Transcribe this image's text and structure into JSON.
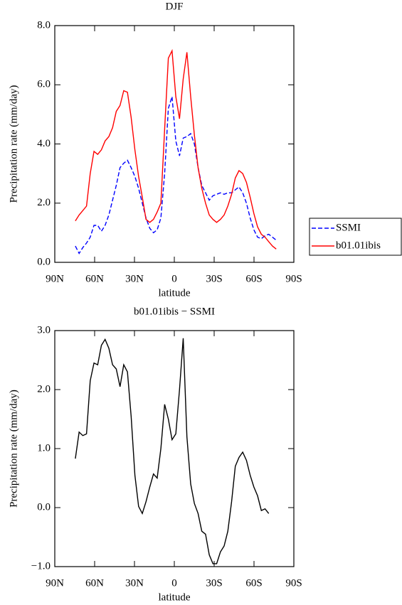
{
  "chart_data": [
    {
      "type": "line",
      "title": "DJF",
      "xlabel": "latitude",
      "ylabel": "Precipitation rate (mm/day)",
      "x": [
        74.5,
        71.7,
        68.9,
        66.1,
        63.3,
        60.5,
        57.7,
        54.9,
        52.1,
        49.3,
        46.5,
        43.7,
        40.9,
        38.1,
        35.3,
        32.5,
        29.7,
        26.9,
        24.1,
        21.3,
        18.5,
        15.7,
        12.9,
        10.1,
        7.3,
        4.5,
        1.7,
        -1.1,
        -3.9,
        -6.7,
        -9.5,
        -12.3,
        -15.1,
        -17.9,
        -20.7,
        -23.5,
        -26.3,
        -29.1,
        -31.9,
        -34.7,
        -37.5,
        -40.3,
        -43.1,
        -45.9,
        -48.7,
        -51.5,
        -54.3,
        -57.1,
        -59.9,
        -62.7,
        -65.5,
        -68.3,
        -71.1,
        -73.9,
        -76.7
      ],
      "series": [
        {
          "name": "SSMI",
          "color": "#0000ff",
          "style": "dashed",
          "values": [
            0.55,
            0.3,
            0.5,
            0.65,
            0.85,
            1.25,
            1.25,
            1.05,
            1.25,
            1.6,
            2.1,
            2.6,
            3.2,
            3.35,
            3.45,
            3.2,
            2.9,
            2.5,
            2.0,
            1.5,
            1.15,
            1.0,
            1.1,
            1.5,
            3.0,
            5.2,
            5.6,
            4.1,
            3.6,
            4.2,
            4.25,
            4.35,
            4.0,
            3.2,
            2.6,
            2.35,
            2.1,
            2.25,
            2.3,
            2.35,
            2.3,
            2.35,
            2.35,
            2.45,
            2.55,
            2.35,
            2.0,
            1.5,
            1.1,
            0.85,
            0.8,
            0.9,
            0.95,
            0.85,
            0.75
          ]
        },
        {
          "name": "b01.01ibis",
          "color": "#ff0000",
          "style": "solid",
          "values": [
            1.4,
            1.6,
            1.75,
            1.9,
            3.0,
            3.75,
            3.65,
            3.8,
            4.1,
            4.25,
            4.55,
            5.1,
            5.3,
            5.8,
            5.75,
            4.9,
            3.8,
            2.9,
            2.2,
            1.45,
            1.35,
            1.45,
            1.7,
            2.0,
            4.5,
            6.9,
            7.15,
            5.6,
            4.85,
            6.2,
            7.1,
            5.6,
            4.3,
            3.2,
            2.5,
            2.0,
            1.6,
            1.45,
            1.35,
            1.45,
            1.6,
            1.9,
            2.3,
            2.85,
            3.1,
            3.0,
            2.7,
            2.2,
            1.65,
            1.2,
            0.95,
            0.85,
            0.7,
            0.55,
            0.45
          ]
        }
      ],
      "xlim": [
        90,
        -90
      ],
      "xticks": [
        {
          "value": 90,
          "label": "90N"
        },
        {
          "value": 60,
          "label": "60N"
        },
        {
          "value": 30,
          "label": "30N"
        },
        0,
        {
          "value": -30,
          "label": "30S"
        },
        {
          "value": -60,
          "label": "60S"
        },
        {
          "value": -90,
          "label": "90S"
        }
      ],
      "ylim": [
        0,
        8
      ],
      "yticks": [
        {
          "value": 0,
          "label": "0.0"
        },
        {
          "value": 2,
          "label": "2.0"
        },
        {
          "value": 4,
          "label": "4.0"
        },
        {
          "value": 6,
          "label": "6.0"
        },
        {
          "value": 8,
          "label": "8.0"
        }
      ],
      "legend": "right"
    },
    {
      "type": "line",
      "title": "b01.01ibis − SSMI",
      "xlabel": "latitude",
      "ylabel": "Precipitation rate (mm/day)",
      "x": [
        74.5,
        71.7,
        68.9,
        66.1,
        63.3,
        60.5,
        57.7,
        54.9,
        52.1,
        49.3,
        46.5,
        43.7,
        40.9,
        38.1,
        35.3,
        32.5,
        29.7,
        26.9,
        24.1,
        21.3,
        18.5,
        15.7,
        12.9,
        10.1,
        7.3,
        4.5,
        1.7,
        -1.1,
        -3.9,
        -6.7,
        -9.5,
        -12.3,
        -15.1,
        -17.9,
        -20.7,
        -23.5,
        -26.3,
        -29.1,
        -31.9,
        -34.7,
        -37.5,
        -40.3,
        -43.1,
        -45.9,
        -48.7,
        -51.5,
        -54.3,
        -57.1,
        -59.9,
        -62.7,
        -65.5,
        -68.3,
        -71.1
      ],
      "series": [
        {
          "color": "#000000",
          "style": "solid",
          "values": [
            0.83,
            1.28,
            1.22,
            1.25,
            2.15,
            2.45,
            2.42,
            2.75,
            2.85,
            2.7,
            2.42,
            2.35,
            2.05,
            2.42,
            2.3,
            1.55,
            0.55,
            0.02,
            -0.1,
            0.1,
            0.35,
            0.57,
            0.5,
            1.0,
            1.75,
            1.5,
            1.15,
            1.25,
            2.0,
            2.87,
            1.2,
            0.4,
            0.07,
            -0.1,
            -0.4,
            -0.45,
            -0.8,
            -0.95,
            -0.95,
            -0.75,
            -0.65,
            -0.4,
            0.1,
            0.7,
            0.85,
            0.94,
            0.8,
            0.55,
            0.35,
            0.2,
            -0.05,
            -0.02,
            -0.1
          ]
        }
      ],
      "xlim": [
        90,
        -90
      ],
      "xticks": [
        {
          "value": 90,
          "label": "90N"
        },
        {
          "value": 60,
          "label": "60N"
        },
        {
          "value": 30,
          "label": "30N"
        },
        0,
        {
          "value": -30,
          "label": "30S"
        },
        {
          "value": -60,
          "label": "60S"
        },
        {
          "value": -90,
          "label": "90S"
        }
      ],
      "ylim": [
        -1,
        3
      ],
      "yticks": [
        {
          "value": -1,
          "label": "−1.0"
        },
        {
          "value": 0,
          "label": "0.0"
        },
        {
          "value": 1,
          "label": "1.0"
        },
        {
          "value": 2,
          "label": "2.0"
        },
        {
          "value": 3,
          "label": "3.0"
        }
      ]
    }
  ]
}
